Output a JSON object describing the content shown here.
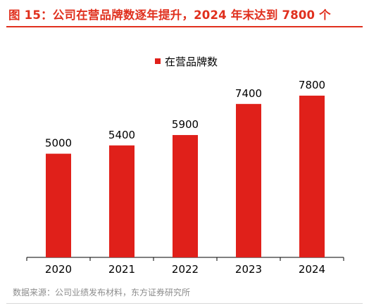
{
  "title": "图 15：公司在营品牌数逐年提升，2024 年末达到 7800 个",
  "source": "数据来源：公司业绩发布材料，东方证券研究所",
  "colors": {
    "accent": "#e0301e",
    "bar": "#e0201a"
  },
  "chart_data": {
    "type": "bar",
    "categories": [
      "2020",
      "2021",
      "2022",
      "2023",
      "2024"
    ],
    "series": [
      {
        "name": "在营品牌数",
        "values": [
          5000,
          5400,
          5900,
          7400,
          7800
        ]
      }
    ],
    "data_labels": [
      "5000",
      "5400",
      "5900",
      "7400",
      "7800"
    ],
    "title": "",
    "xlabel": "",
    "ylabel": "",
    "ylim": [
      0,
      9700
    ],
    "grid": false,
    "legend": "top-center"
  }
}
